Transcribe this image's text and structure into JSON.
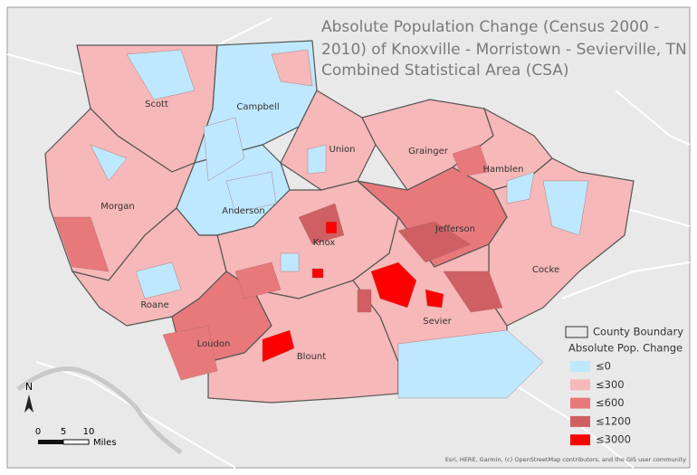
{
  "map": {
    "title_lines": [
      "Absolute Population Change (Census 2000 -",
      "2010) of Knoxville - Morristown - Sevierville, TN",
      "Combined Statistical Area (CSA)"
    ],
    "counties": [
      {
        "name": "Scott"
      },
      {
        "name": "Campbell"
      },
      {
        "name": "Union"
      },
      {
        "name": "Grainger"
      },
      {
        "name": "Hamblen"
      },
      {
        "name": "Morgan"
      },
      {
        "name": "Anderson"
      },
      {
        "name": "Knox"
      },
      {
        "name": "Jefferson"
      },
      {
        "name": "Cocke"
      },
      {
        "name": "Roane"
      },
      {
        "name": "Loudon"
      },
      {
        "name": "Blount"
      },
      {
        "name": "Sevier"
      }
    ],
    "legend": {
      "boundary_label": "County Boundary",
      "title": "Absolute Pop. Change",
      "classes": [
        {
          "label": "≤0",
          "color": "#bee8ff"
        },
        {
          "label": "≤300",
          "color": "#f6b8b8"
        },
        {
          "label": "≤600",
          "color": "#e8797b"
        },
        {
          "label": "≤1200",
          "color": "#cf5f63"
        },
        {
          "label": "≤3000",
          "color": "#ff0000"
        }
      ]
    },
    "scale": {
      "ticks": [
        "0",
        "5",
        "10"
      ],
      "unit": "Miles"
    },
    "north": "N",
    "attribution": "Esri, HERE, Garmin, (c) OpenStreetMap contributors, and the GIS user community"
  }
}
